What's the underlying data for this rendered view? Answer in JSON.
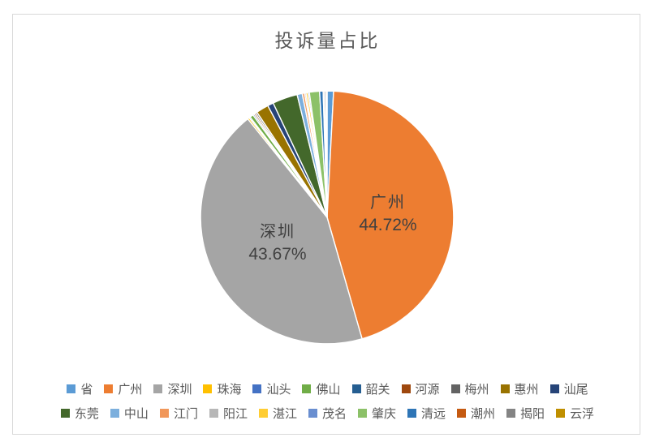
{
  "chart": {
    "title": "投诉量占比"
  },
  "chart_data": {
    "type": "pie",
    "title": "投诉量占比",
    "unit": "percent",
    "direction": "clockwise",
    "start_angle_deg": 0,
    "legend_position": "bottom",
    "labeled_slices_only": "广州 and 深圳 show data labels; all other slice values are estimated from arc size",
    "series": [
      {
        "name": "省",
        "value": 0.82,
        "color": "#5B9BD5"
      },
      {
        "name": "广州",
        "value": 44.72,
        "color": "#ED7D31"
      },
      {
        "name": "深圳",
        "value": 43.67,
        "color": "#A5A5A5"
      },
      {
        "name": "珠海",
        "value": 0.22,
        "color": "#FFC000"
      },
      {
        "name": "汕头",
        "value": 0.16,
        "color": "#4472C4"
      },
      {
        "name": "佛山",
        "value": 0.45,
        "color": "#70AD47"
      },
      {
        "name": "韶关",
        "value": 0.18,
        "color": "#255E91"
      },
      {
        "name": "河源",
        "value": 0.2,
        "color": "#9E480E"
      },
      {
        "name": "梅州",
        "value": 0.22,
        "color": "#636363"
      },
      {
        "name": "惠州",
        "value": 1.6,
        "color": "#997300"
      },
      {
        "name": "汕尾",
        "value": 0.75,
        "color": "#264478"
      },
      {
        "name": "东莞",
        "value": 3.2,
        "color": "#43682B"
      },
      {
        "name": "中山",
        "value": 0.65,
        "color": "#7CAFDD"
      },
      {
        "name": "江门",
        "value": 0.3,
        "color": "#F1975A"
      },
      {
        "name": "阳江",
        "value": 0.18,
        "color": "#B7B7B7"
      },
      {
        "name": "湛江",
        "value": 0.25,
        "color": "#FFCD33"
      },
      {
        "name": "茂名",
        "value": 0.18,
        "color": "#698ED0"
      },
      {
        "name": "肇庆",
        "value": 1.3,
        "color": "#8CC168"
      },
      {
        "name": "清远",
        "value": 0.45,
        "color": "#2E75B6"
      },
      {
        "name": "潮州",
        "value": 0.15,
        "color": "#C55A11"
      },
      {
        "name": "揭阳",
        "value": 0.2,
        "color": "#848484"
      },
      {
        "name": "云浮",
        "value": 0.15,
        "color": "#BF8F00"
      }
    ],
    "data_labels": [
      {
        "name": "广州",
        "value_text": "44.72%"
      },
      {
        "name": "深圳",
        "value_text": "43.67%"
      }
    ],
    "legend_rows": [
      [
        "省",
        "广州",
        "深圳",
        "珠海",
        "汕头",
        "佛山",
        "韶关",
        "河源",
        "梅州",
        "惠州",
        "汕尾"
      ],
      [
        "东莞",
        "中山",
        "江门",
        "阳江",
        "湛江",
        "茂名",
        "肇庆",
        "清远",
        "潮州",
        "揭阳",
        "云浮"
      ]
    ]
  },
  "colors": {
    "title_text": "#595959",
    "legend_text": "#595959",
    "data_label_text": "#404040",
    "frame_border": "#D9D9D9",
    "background": "#FFFFFF",
    "slice_border": "#FFFFFF"
  }
}
